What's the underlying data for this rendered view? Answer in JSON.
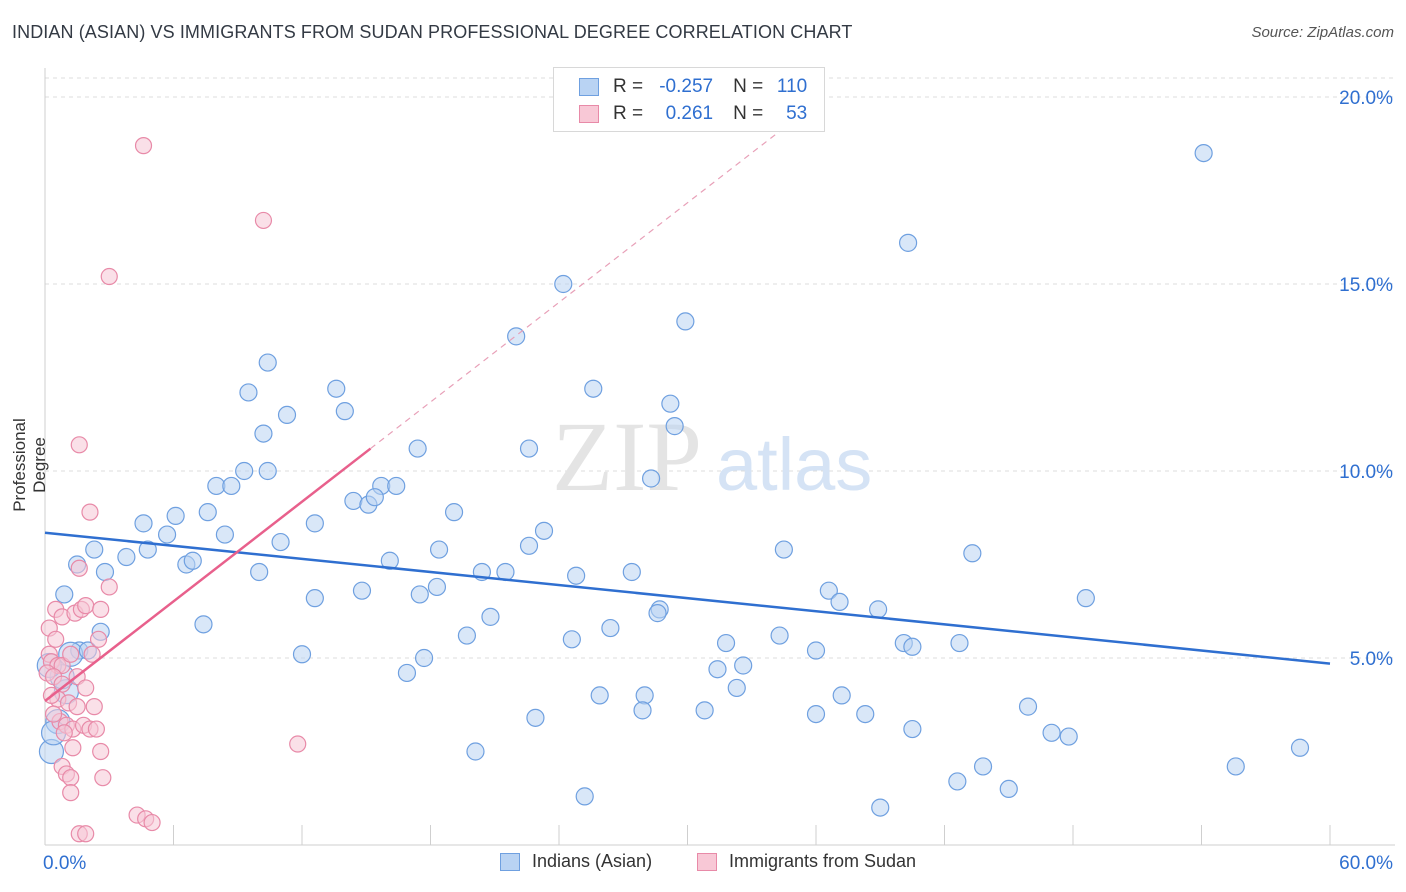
{
  "title": "INDIAN (ASIAN) VS IMMIGRANTS FROM SUDAN PROFESSIONAL DEGREE CORRELATION CHART",
  "source": "Source: ZipAtlas.com",
  "watermark": {
    "zip": "ZIP",
    "atlas": "atlas"
  },
  "legend": {
    "rows": [
      {
        "r_label": "R =",
        "r_value": "-0.257",
        "n_label": "N =",
        "n_value": "110",
        "color": "#aac8f0",
        "border": "#6fa0e0"
      },
      {
        "r_label": "R =",
        "r_value": "0.261",
        "n_label": "N =",
        "n_value": "53",
        "color": "#f8c0d0",
        "border": "#e88aa8"
      }
    ]
  },
  "colors": {
    "blue": "#2f6fd0",
    "pink": "#e8608c",
    "blue_fill": "#b9d3f3",
    "pink_fill": "#f6c6d6"
  },
  "chart_data": {
    "type": "scatter",
    "title": "INDIAN (ASIAN) VS IMMIGRANTS FROM SUDAN PROFESSIONAL DEGREE CORRELATION CHART",
    "xlabel": "",
    "ylabel": "Professional Degree",
    "xlim": [
      0,
      60
    ],
    "ylim": [
      0,
      20
    ],
    "x_tick_labels": [
      "0.0%",
      "60.0%"
    ],
    "y_ticks": [
      5,
      10,
      15,
      20
    ],
    "y_tick_labels": [
      "5.0%",
      "10.0%",
      "15.0%",
      "20.0%"
    ],
    "grid": true,
    "legend_position": "top-center",
    "series": [
      {
        "name": "Indians (Asian)",
        "color": "#2f6fd0",
        "trend": {
          "x0": 0,
          "y0": 8.35,
          "x1": 60,
          "y1": 4.85
        },
        "points": [
          [
            54.1,
            18.5
          ],
          [
            40.3,
            16.1
          ],
          [
            24.2,
            15.0
          ],
          [
            22.0,
            13.6
          ],
          [
            29.9,
            14.0
          ],
          [
            10.4,
            12.9
          ],
          [
            9.5,
            12.1
          ],
          [
            13.6,
            12.2
          ],
          [
            11.3,
            11.5
          ],
          [
            14.0,
            11.6
          ],
          [
            10.2,
            11.0
          ],
          [
            25.6,
            12.2
          ],
          [
            29.2,
            11.8
          ],
          [
            29.4,
            11.2
          ],
          [
            17.4,
            10.6
          ],
          [
            22.6,
            10.6
          ],
          [
            9.3,
            10.0
          ],
          [
            10.4,
            10.0
          ],
          [
            8.0,
            9.6
          ],
          [
            8.7,
            9.6
          ],
          [
            15.7,
            9.6
          ],
          [
            16.4,
            9.6
          ],
          [
            28.3,
            9.8
          ],
          [
            14.4,
            9.2
          ],
          [
            15.1,
            9.1
          ],
          [
            15.4,
            9.3
          ],
          [
            19.1,
            8.9
          ],
          [
            4.6,
            8.6
          ],
          [
            6.1,
            8.8
          ],
          [
            7.6,
            8.9
          ],
          [
            12.6,
            8.6
          ],
          [
            5.7,
            8.3
          ],
          [
            8.4,
            8.3
          ],
          [
            23.3,
            8.4
          ],
          [
            4.8,
            7.9
          ],
          [
            2.3,
            7.9
          ],
          [
            11.0,
            8.1
          ],
          [
            18.4,
            7.9
          ],
          [
            1.5,
            7.5
          ],
          [
            3.8,
            7.7
          ],
          [
            2.8,
            7.3
          ],
          [
            6.6,
            7.5
          ],
          [
            6.9,
            7.6
          ],
          [
            10.0,
            7.3
          ],
          [
            16.1,
            7.6
          ],
          [
            22.6,
            8.0
          ],
          [
            34.5,
            7.9
          ],
          [
            43.3,
            7.8
          ],
          [
            20.4,
            7.3
          ],
          [
            21.5,
            7.3
          ],
          [
            24.8,
            7.2
          ],
          [
            27.4,
            7.3
          ],
          [
            18.3,
            6.9
          ],
          [
            14.8,
            6.8
          ],
          [
            36.6,
            6.8
          ],
          [
            0.9,
            6.7
          ],
          [
            12.6,
            6.6
          ],
          [
            17.5,
            6.7
          ],
          [
            37.1,
            6.5
          ],
          [
            48.6,
            6.6
          ],
          [
            28.7,
            6.3
          ],
          [
            38.9,
            6.3
          ],
          [
            20.8,
            6.1
          ],
          [
            28.6,
            6.2
          ],
          [
            2.6,
            5.7
          ],
          [
            7.4,
            5.9
          ],
          [
            26.4,
            5.8
          ],
          [
            19.7,
            5.6
          ],
          [
            24.6,
            5.5
          ],
          [
            31.8,
            5.4
          ],
          [
            34.3,
            5.6
          ],
          [
            40.1,
            5.4
          ],
          [
            42.7,
            5.4
          ],
          [
            1.6,
            5.2
          ],
          [
            12.0,
            5.1
          ],
          [
            17.7,
            5.0
          ],
          [
            36.0,
            5.2
          ],
          [
            40.5,
            5.3
          ],
          [
            16.9,
            4.6
          ],
          [
            31.4,
            4.7
          ],
          [
            32.6,
            4.8
          ],
          [
            28.0,
            4.0
          ],
          [
            25.9,
            4.0
          ],
          [
            32.3,
            4.2
          ],
          [
            37.2,
            4.0
          ],
          [
            45.9,
            3.7
          ],
          [
            27.9,
            3.6
          ],
          [
            30.8,
            3.6
          ],
          [
            36.0,
            3.5
          ],
          [
            38.3,
            3.5
          ],
          [
            22.9,
            3.4
          ],
          [
            40.5,
            3.1
          ],
          [
            47.0,
            3.0
          ],
          [
            47.8,
            2.9
          ],
          [
            20.1,
            2.5
          ],
          [
            0.3,
            2.5
          ],
          [
            58.6,
            2.6
          ],
          [
            55.6,
            2.1
          ],
          [
            42.6,
            1.7
          ],
          [
            43.8,
            2.1
          ],
          [
            45.0,
            1.5
          ],
          [
            25.2,
            1.3
          ],
          [
            39.0,
            1.0
          ],
          [
            1.0,
            4.1
          ],
          [
            0.6,
            3.3
          ],
          [
            0.4,
            3.0
          ],
          [
            1.2,
            5.1
          ],
          [
            2.0,
            5.2
          ],
          [
            0.8,
            4.5
          ],
          [
            0.2,
            4.8
          ]
        ]
      },
      {
        "name": "Immigrants from Sudan",
        "color": "#e8608c",
        "trend": {
          "x0": 0,
          "y0": 3.85,
          "x1": 15.2,
          "y1": 10.6,
          "dash_to_x": 34.5
        },
        "points": [
          [
            4.6,
            18.7
          ],
          [
            10.2,
            16.7
          ],
          [
            3.0,
            15.2
          ],
          [
            1.6,
            10.7
          ],
          [
            2.1,
            8.9
          ],
          [
            1.6,
            7.4
          ],
          [
            3.0,
            6.9
          ],
          [
            0.5,
            6.3
          ],
          [
            0.8,
            6.1
          ],
          [
            1.4,
            6.2
          ],
          [
            1.7,
            6.3
          ],
          [
            1.9,
            6.4
          ],
          [
            2.6,
            6.3
          ],
          [
            0.2,
            5.8
          ],
          [
            0.5,
            5.5
          ],
          [
            2.5,
            5.5
          ],
          [
            0.2,
            5.1
          ],
          [
            0.3,
            4.9
          ],
          [
            0.6,
            4.8
          ],
          [
            0.8,
            4.8
          ],
          [
            1.2,
            5.1
          ],
          [
            2.2,
            5.1
          ],
          [
            0.1,
            4.6
          ],
          [
            0.4,
            4.5
          ],
          [
            0.8,
            4.3
          ],
          [
            1.5,
            4.5
          ],
          [
            1.9,
            4.2
          ],
          [
            0.6,
            3.9
          ],
          [
            1.1,
            3.8
          ],
          [
            1.5,
            3.7
          ],
          [
            2.3,
            3.7
          ],
          [
            0.7,
            3.3
          ],
          [
            1.0,
            3.2
          ],
          [
            1.3,
            3.1
          ],
          [
            1.8,
            3.2
          ],
          [
            2.1,
            3.1
          ],
          [
            2.4,
            3.1
          ],
          [
            0.4,
            3.5
          ],
          [
            0.9,
            3.0
          ],
          [
            1.3,
            2.6
          ],
          [
            2.6,
            2.5
          ],
          [
            0.8,
            2.1
          ],
          [
            1.0,
            1.9
          ],
          [
            1.2,
            1.8
          ],
          [
            2.7,
            1.8
          ],
          [
            1.2,
            1.4
          ],
          [
            11.8,
            2.7
          ],
          [
            4.3,
            0.8
          ],
          [
            4.7,
            0.7
          ],
          [
            5.0,
            0.6
          ],
          [
            1.6,
            0.3
          ],
          [
            1.9,
            0.3
          ],
          [
            0.3,
            4.0
          ]
        ]
      }
    ]
  }
}
